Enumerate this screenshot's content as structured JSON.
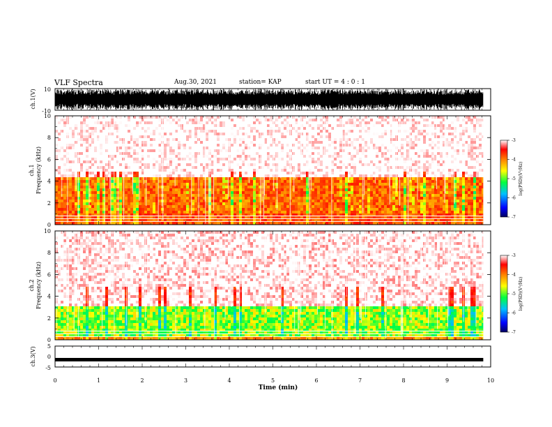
{
  "header": {
    "title": "VLF Spectra",
    "date": "Aug.30, 2021",
    "station": "station= KAP",
    "start": "start  UT =   4 : 0  : 1"
  },
  "chart_data": [
    {
      "type": "line",
      "panel": "ch1-waveform",
      "ylabel": "ch.1(V)",
      "ylim": [
        -10,
        10
      ],
      "yticks": [
        "10",
        "-10"
      ],
      "xlim": [
        0,
        10
      ]
    },
    {
      "type": "heatmap",
      "panel": "ch1-spectrogram",
      "ylabel_line1": "ch.1",
      "ylabel_line2": "Frequency (kHz)",
      "ylim": [
        0,
        10
      ],
      "yticks": [
        "0",
        "2",
        "4",
        "6",
        "8",
        "10"
      ],
      "xlim": [
        0,
        10
      ],
      "colorbar": {
        "label": "log(PSD)(V²/Hz)",
        "ticks": [
          "-3",
          "-4",
          "-5",
          "-6",
          "-7"
        ],
        "range": [
          -7,
          -3
        ]
      }
    },
    {
      "type": "heatmap",
      "panel": "ch2-spectrogram",
      "ylabel_line1": "ch.2",
      "ylabel_line2": "Frequency (kHz)",
      "ylim": [
        0,
        10
      ],
      "yticks": [
        "0",
        "2",
        "4",
        "6",
        "8",
        "10"
      ],
      "xlim": [
        0,
        10
      ],
      "colorbar": {
        "label": "log(PSD)(V²/Hz)",
        "ticks": [
          "-3",
          "-4",
          "-5",
          "-6",
          "-7"
        ],
        "range": [
          -7,
          -3
        ]
      }
    },
    {
      "type": "line",
      "panel": "ch3-waveform",
      "ylabel": "ch.3(V)",
      "ylim": [
        -5,
        5
      ],
      "yticks": [
        "5",
        "0",
        "-5"
      ],
      "level": -1.5,
      "xlim": [
        0,
        10
      ]
    }
  ],
  "xaxis": {
    "label": "Time (min)",
    "ticks": [
      "0",
      "1",
      "2",
      "3",
      "4",
      "5",
      "6",
      "7",
      "8",
      "9",
      "10"
    ],
    "data_end": 9.83
  }
}
